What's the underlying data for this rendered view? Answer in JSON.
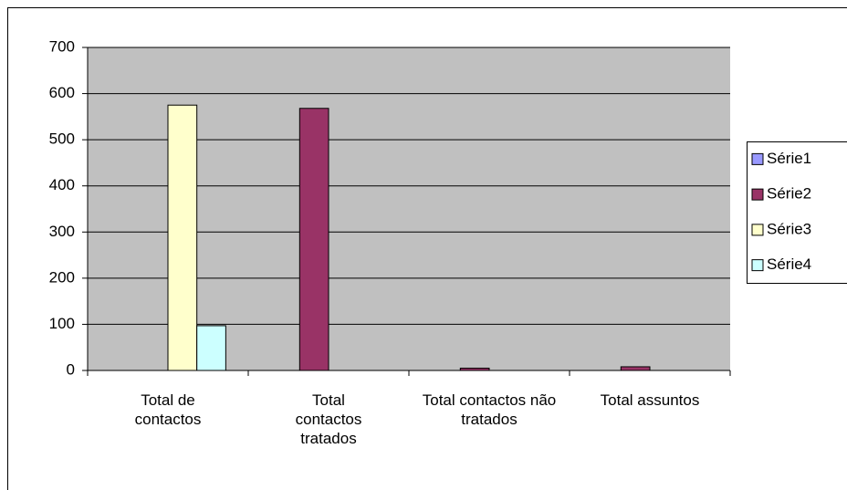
{
  "chart_data": {
    "type": "bar",
    "categories": [
      "Total de contactos",
      "Total contactos tratados",
      "Total contactos não tratados",
      "Total assuntos"
    ],
    "series": [
      {
        "name": "Série1",
        "color": "#9999ff",
        "values": [
          null,
          null,
          null,
          null
        ]
      },
      {
        "name": "Série2",
        "color": "#993366",
        "values": [
          null,
          568,
          5,
          8
        ]
      },
      {
        "name": "Série3",
        "color": "#ffffcc",
        "values": [
          575,
          null,
          null,
          null
        ]
      },
      {
        "name": "Série4",
        "color": "#ccffff",
        "values": [
          97,
          null,
          null,
          null
        ]
      }
    ],
    "ylim": [
      0,
      700
    ],
    "yticks": [
      0,
      100,
      200,
      300,
      400,
      500,
      600,
      700
    ],
    "grid": true,
    "legend": "right",
    "plot_background": "#c0c0c0"
  }
}
